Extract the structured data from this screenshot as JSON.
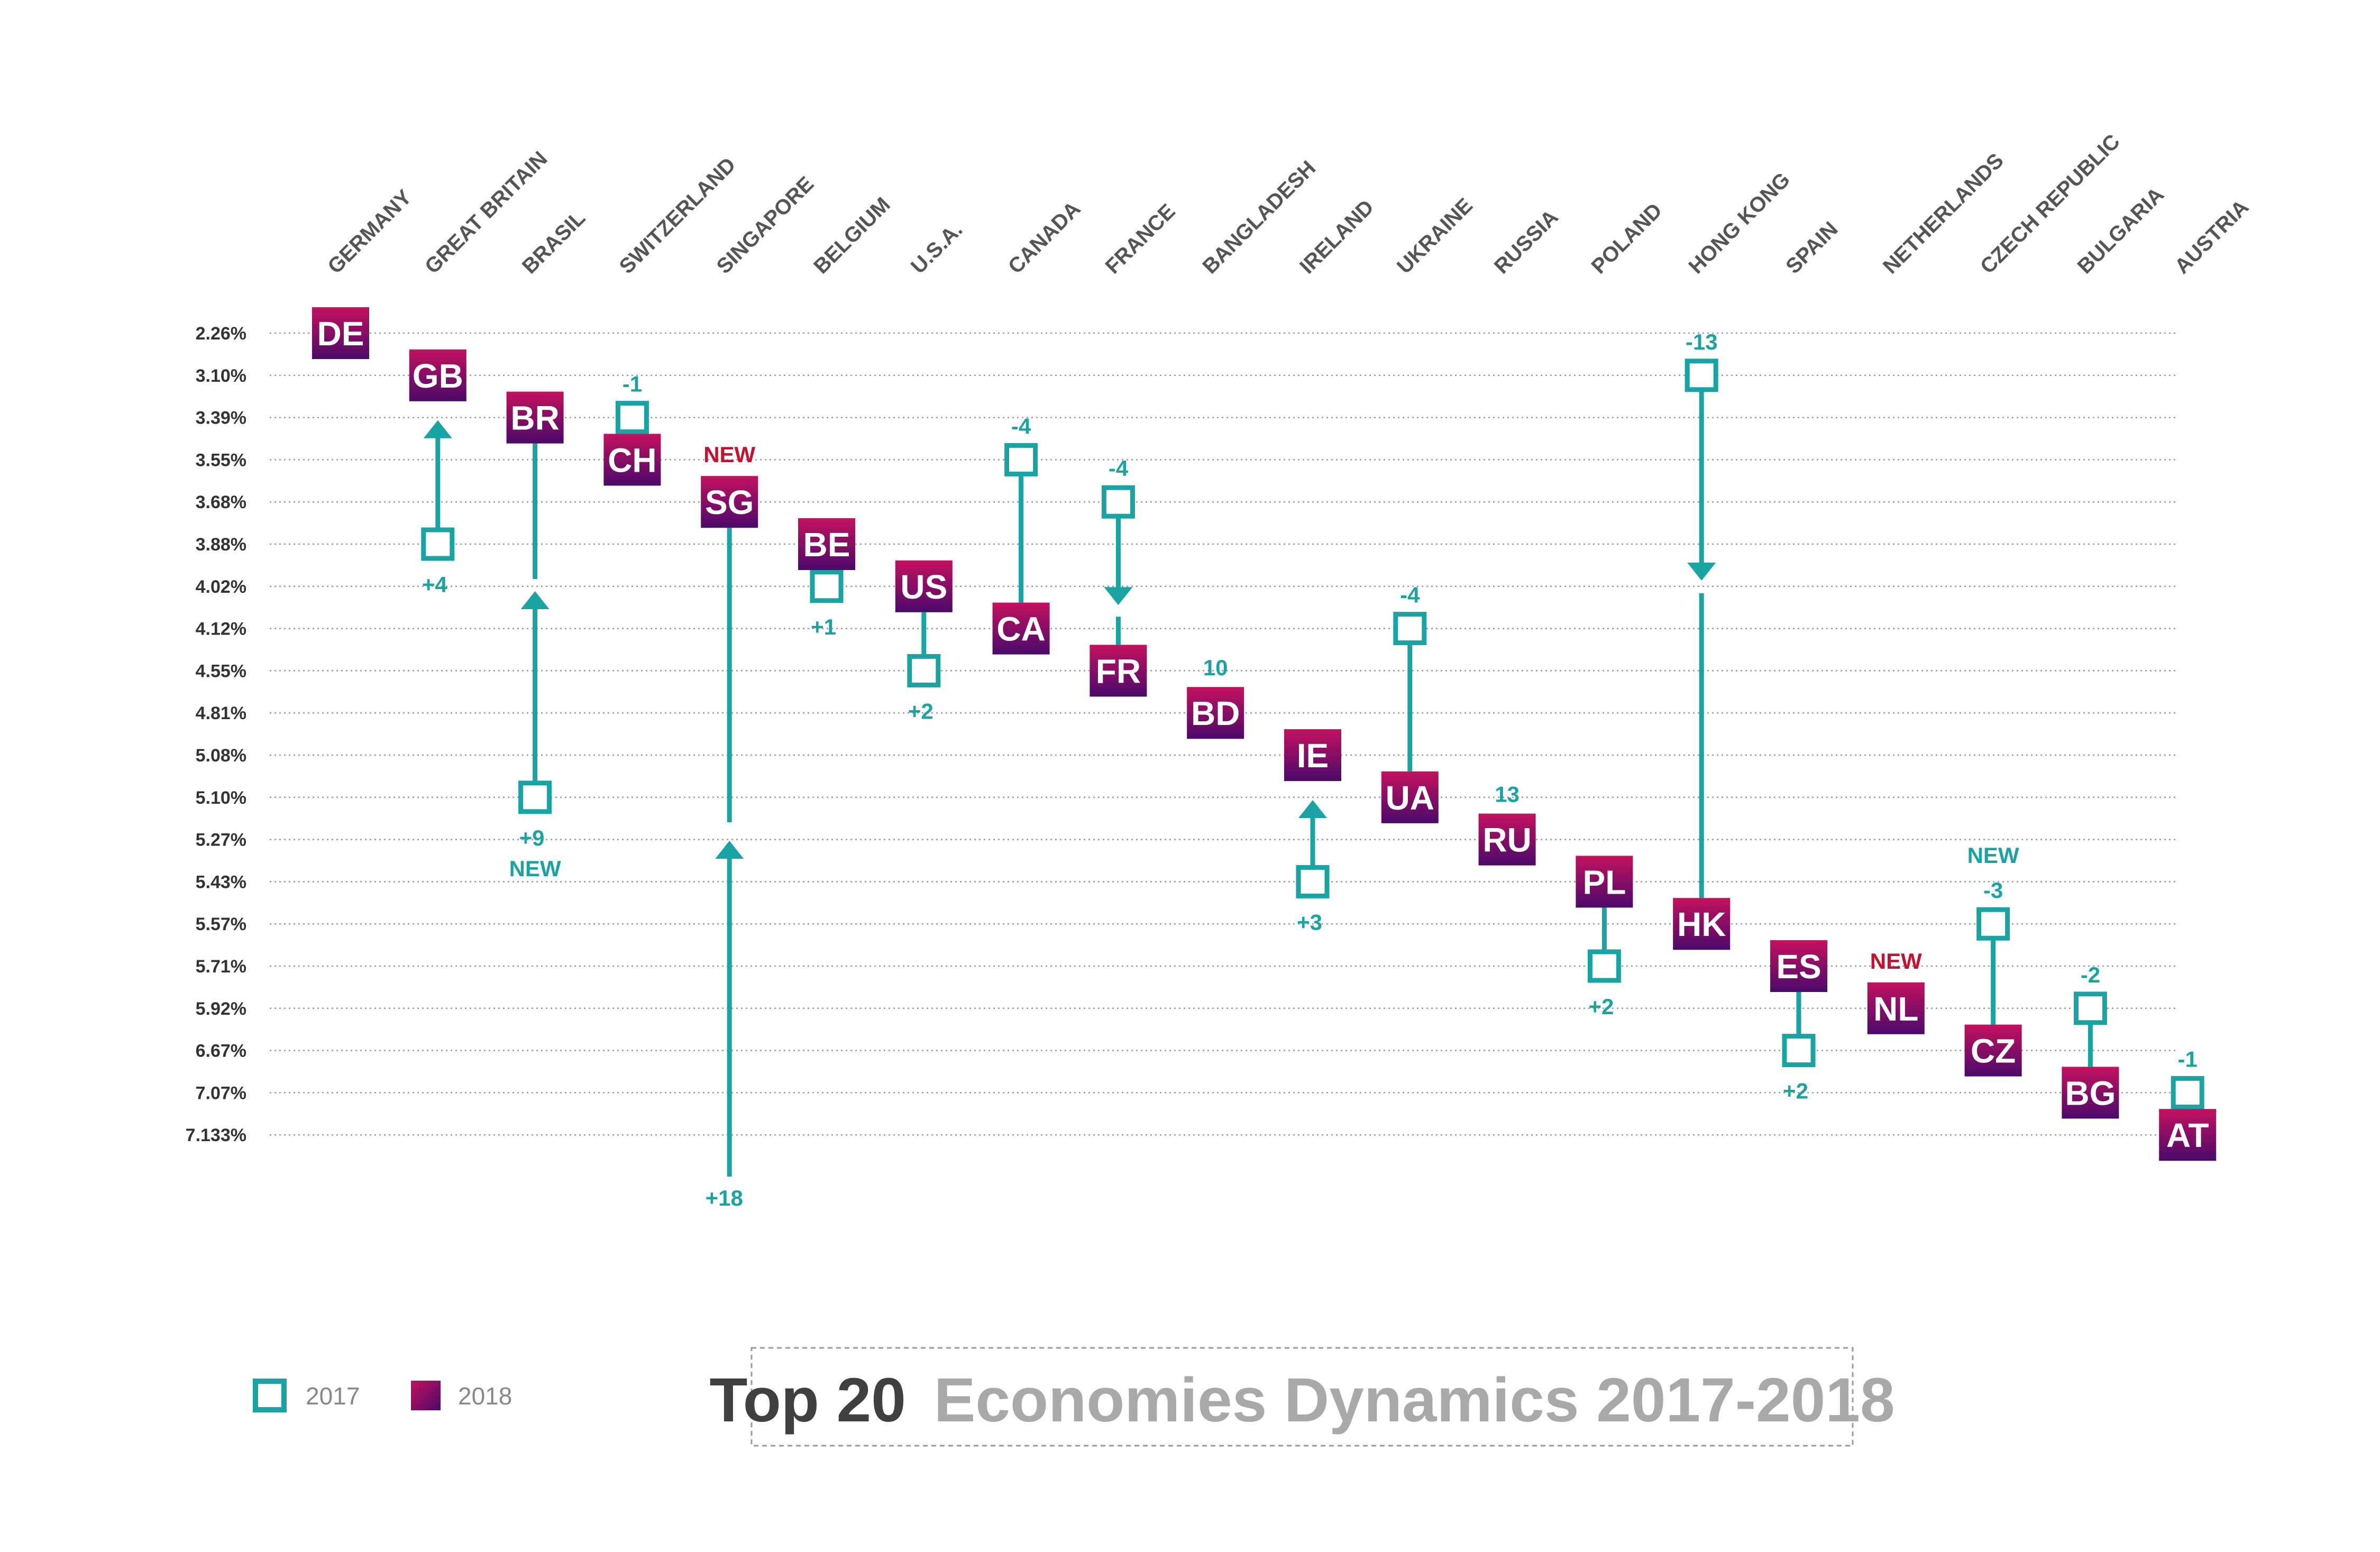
{
  "colors": {
    "teal": "#1aa3a3",
    "new_red": "#c8102e",
    "box_top": "#c4115f",
    "box_bottom": "#4a0a6a",
    "grid": "#9a9a9a",
    "title_dark": "#404040",
    "title_light": "#a9a9a9"
  },
  "legend": {
    "item_2017": "2017",
    "item_2018": "2018"
  },
  "title": {
    "part1": "Top 20",
    "part2": "Economies Dynamics 2017-2018"
  },
  "chart_data": {
    "type": "dumbbell",
    "y_ticks": [
      "2.26%",
      "3.10%",
      "3.39%",
      "3.55%",
      "3.68%",
      "3.88%",
      "4.02%",
      "4.12%",
      "4.55%",
      "4.81%",
      "5.08%",
      "5.10%",
      "5.27%",
      "5.43%",
      "5.57%",
      "5.71%",
      "5.92%",
      "6.67%",
      "7.07%",
      "7.133%"
    ],
    "series_2017": "2017",
    "series_2018": "2018",
    "countries": [
      {
        "name": "GERMANY",
        "code": "DE",
        "y2018": "2.26%",
        "y2017": null,
        "change": null,
        "arrow": "none"
      },
      {
        "name": "GREAT BRITAIN",
        "code": "GB",
        "y2018": "3.10%",
        "y2017": "3.88%",
        "change": "+4",
        "arrow": "up"
      },
      {
        "name": "BRASIL",
        "code": "BR",
        "y2018": "3.39%",
        "y2017": "5.10%",
        "change": "+9",
        "arrow": "up",
        "new_teal": "NEW"
      },
      {
        "name": "SWITZERLAND",
        "code": "CH",
        "y2018": "3.55%",
        "y2017": "3.39%",
        "change": "-1",
        "arrow": "none"
      },
      {
        "name": "SINGAPORE",
        "code": "SG",
        "y2018": "3.68%",
        "y2017": null,
        "change": "+18",
        "arrow": "up",
        "new_red": "NEW"
      },
      {
        "name": "BELGIUM",
        "code": "BE",
        "y2018": "3.88%",
        "y2017": "4.02%",
        "change": "+1",
        "arrow": "none"
      },
      {
        "name": "U.S.A.",
        "code": "US",
        "y2018": "4.02%",
        "y2017": "4.55%",
        "change": "+2",
        "arrow": "none"
      },
      {
        "name": "CANADA",
        "code": "CA",
        "y2018": "4.12%",
        "y2017": "3.55%",
        "change": "-4",
        "arrow": "none"
      },
      {
        "name": "FRANCE",
        "code": "FR",
        "y2018": "4.55%",
        "y2017": "3.68%",
        "change": "-4",
        "arrow": "down"
      },
      {
        "name": "BANGLADESH",
        "code": "BD",
        "y2018": "4.81%",
        "y2017": null,
        "change": "10",
        "arrow": "none"
      },
      {
        "name": "IRELAND",
        "code": "IE",
        "y2018": "5.08%",
        "y2017": "5.43%",
        "change": "+3",
        "arrow": "up"
      },
      {
        "name": "UKRAINE",
        "code": "UA",
        "y2018": "5.10%",
        "y2017": "4.12%",
        "change": "-4",
        "arrow": "none"
      },
      {
        "name": "RUSSIA",
        "code": "RU",
        "y2018": "5.27%",
        "y2017": null,
        "change": "13",
        "arrow": "none"
      },
      {
        "name": "POLAND",
        "code": "PL",
        "y2018": "5.43%",
        "y2017": "5.71%",
        "change": "+2",
        "arrow": "none"
      },
      {
        "name": "HONG KONG",
        "code": "HK",
        "y2018": "5.57%",
        "y2017": "3.10%",
        "change": "-13",
        "arrow": "down"
      },
      {
        "name": "SPAIN",
        "code": "ES",
        "y2018": "5.71%",
        "y2017": "6.67%",
        "change": "+2",
        "arrow": "none"
      },
      {
        "name": "NETHERLANDS",
        "code": "NL",
        "y2018": "5.92%",
        "y2017": null,
        "change": null,
        "arrow": "none",
        "new_red": "NEW"
      },
      {
        "name": "CZECH REPUBLIC",
        "code": "CZ",
        "y2018": "6.67%",
        "y2017": "5.57%",
        "change": "-3",
        "arrow": "none",
        "new_teal": "NEW"
      },
      {
        "name": "BULGARIA",
        "code": "BG",
        "y2018": "7.07%",
        "y2017": "5.92%",
        "change": "-2",
        "arrow": "none"
      },
      {
        "name": "AUSTRIA",
        "code": "AT",
        "y2018": "7.133%",
        "y2017": "7.07%",
        "change": "-1",
        "arrow": "none"
      }
    ]
  }
}
